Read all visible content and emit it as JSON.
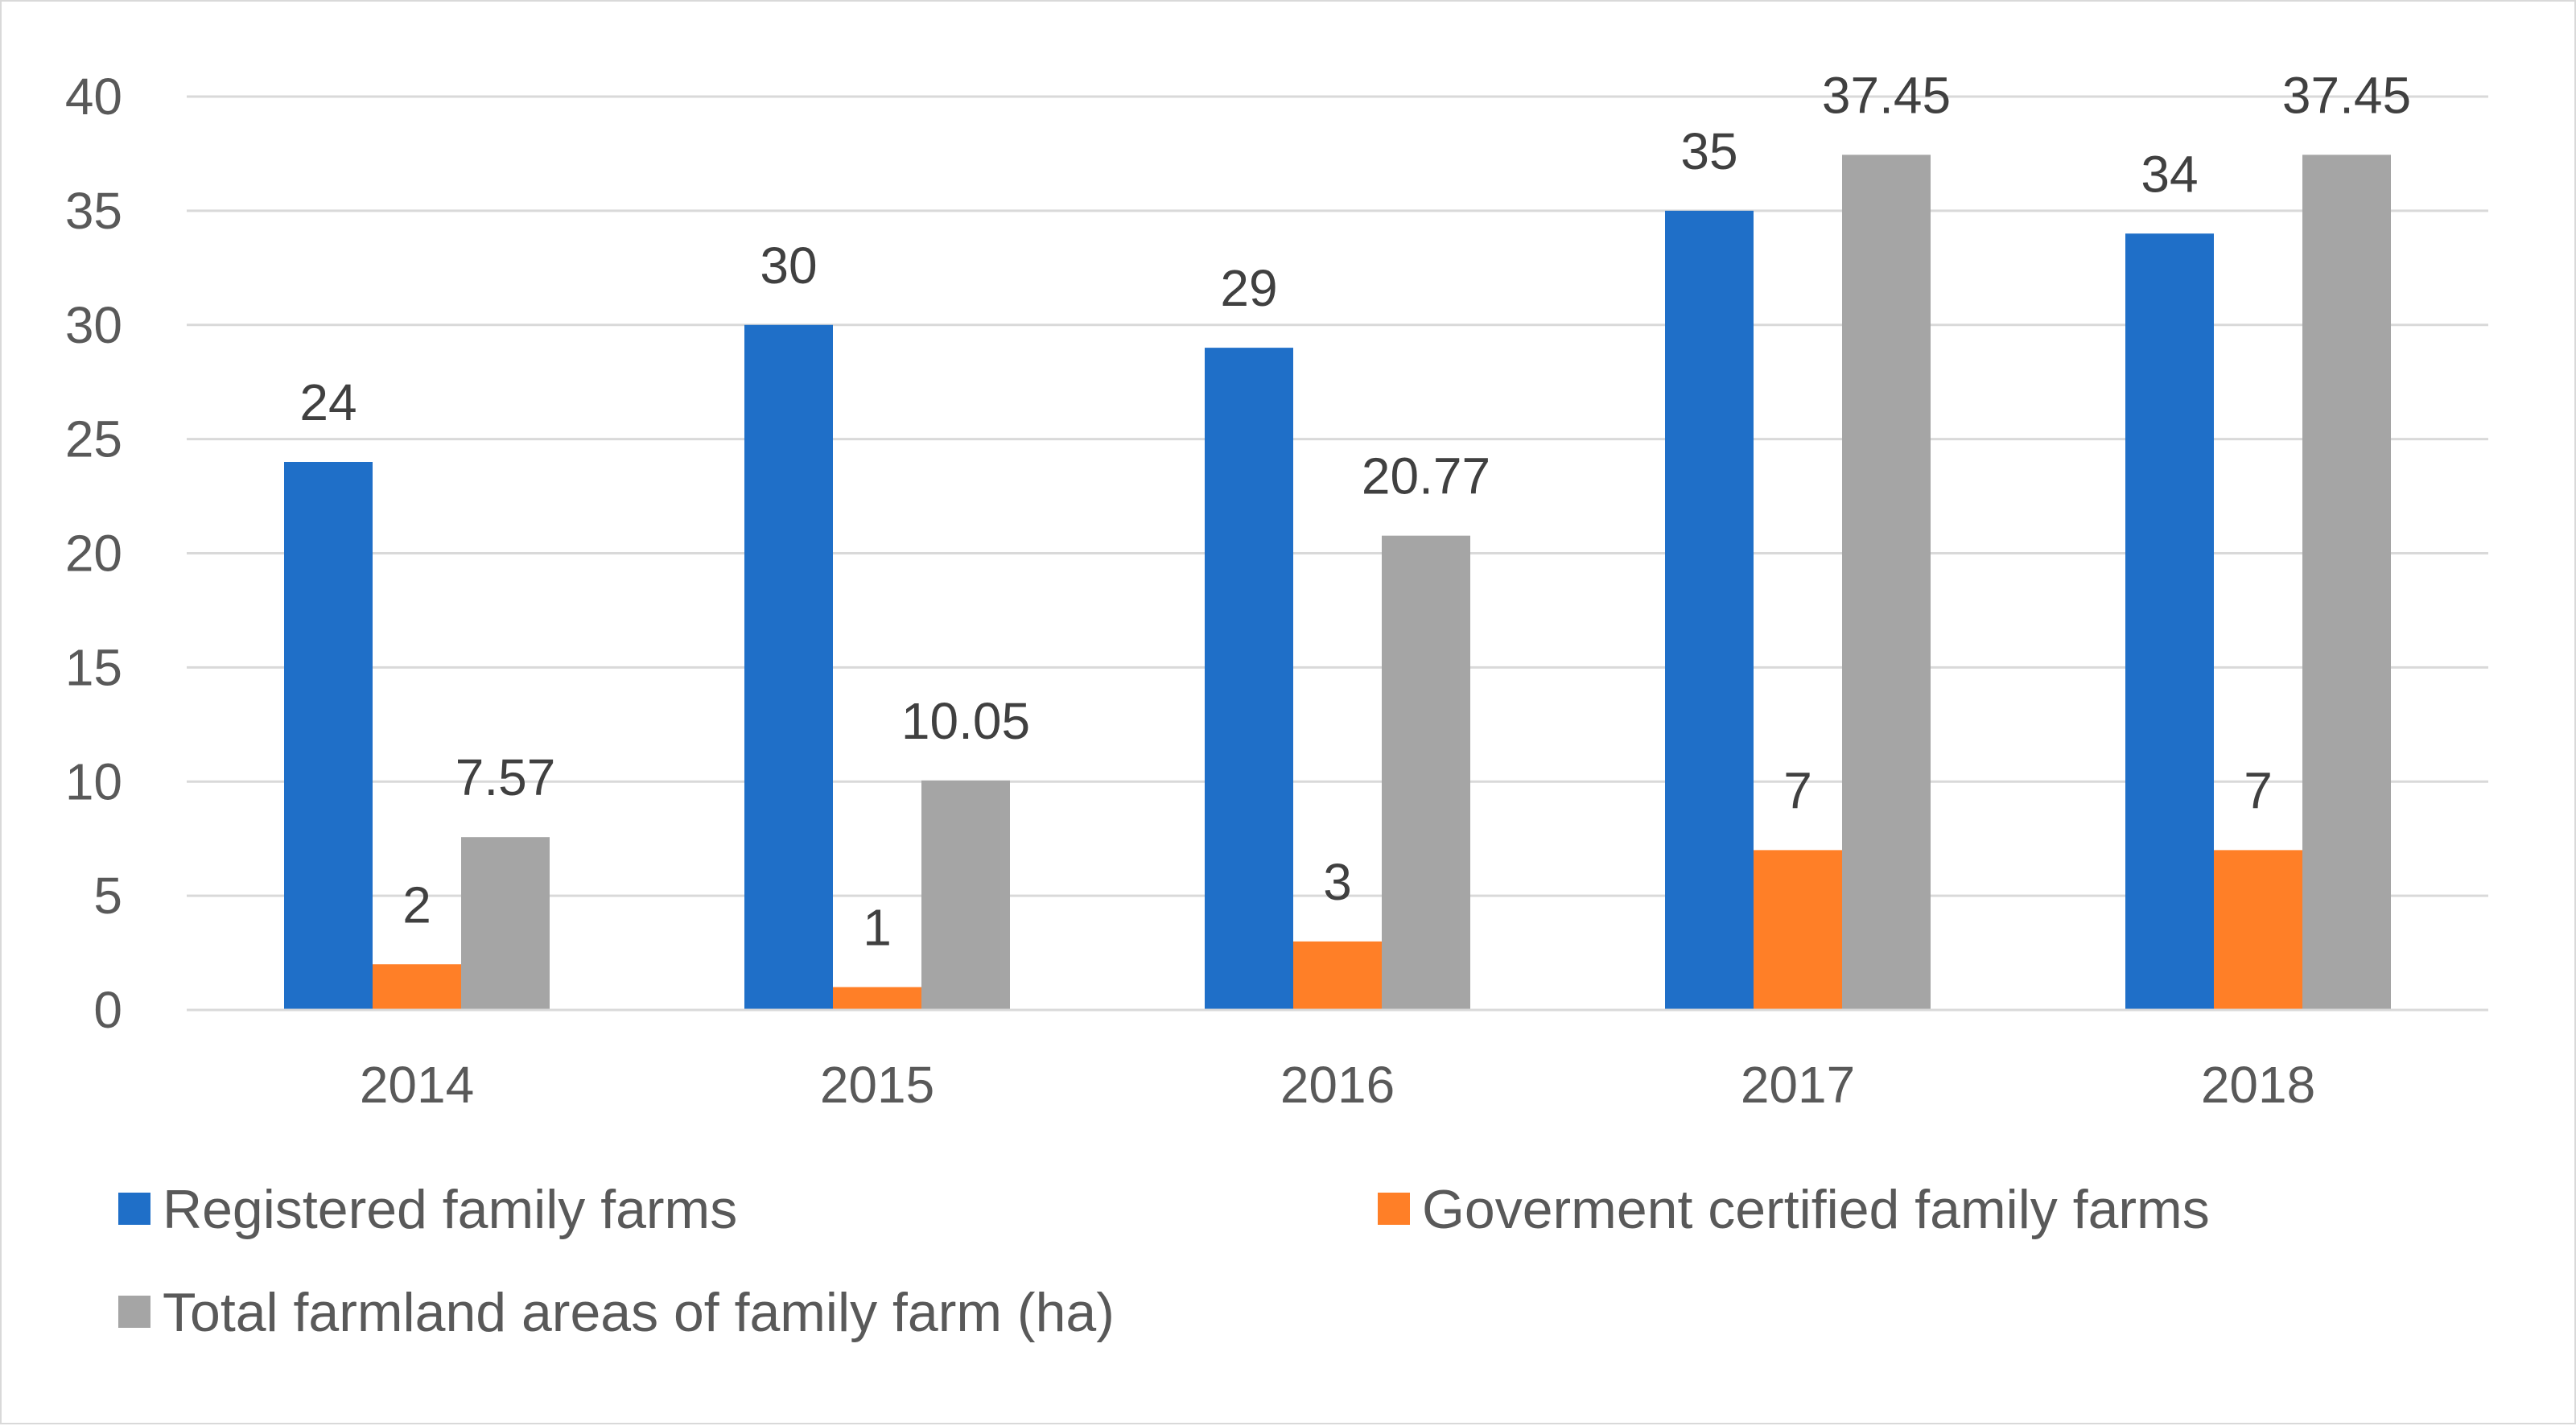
{
  "chart_data": {
    "type": "bar",
    "title": "",
    "xlabel": "",
    "ylabel": "",
    "categories": [
      "2014",
      "2015",
      "2016",
      "2017",
      "2018"
    ],
    "ylim": [
      0,
      40
    ],
    "yticks": [
      0,
      5,
      10,
      15,
      20,
      25,
      30,
      35,
      40
    ],
    "grid": true,
    "legend_position": "bottom",
    "series": [
      {
        "name": "Registered family farms",
        "color": "#1f6fc8",
        "values": [
          24,
          30,
          29,
          35,
          34
        ],
        "labels": [
          "24",
          "30",
          "29",
          "35",
          "34"
        ]
      },
      {
        "name": "Goverment certified family farms",
        "color": "#ff7f27",
        "values": [
          2,
          1,
          3,
          7,
          7
        ],
        "labels": [
          "2",
          "1",
          "3",
          "7",
          "7"
        ]
      },
      {
        "name": "Total farmland areas of family farm (ha)",
        "color": "#a5a5a5",
        "values": [
          7.57,
          10.05,
          20.77,
          37.45,
          37.45
        ],
        "labels": [
          "7.57",
          "10.05",
          "20.77",
          "37.45",
          "37.45"
        ]
      }
    ]
  }
}
